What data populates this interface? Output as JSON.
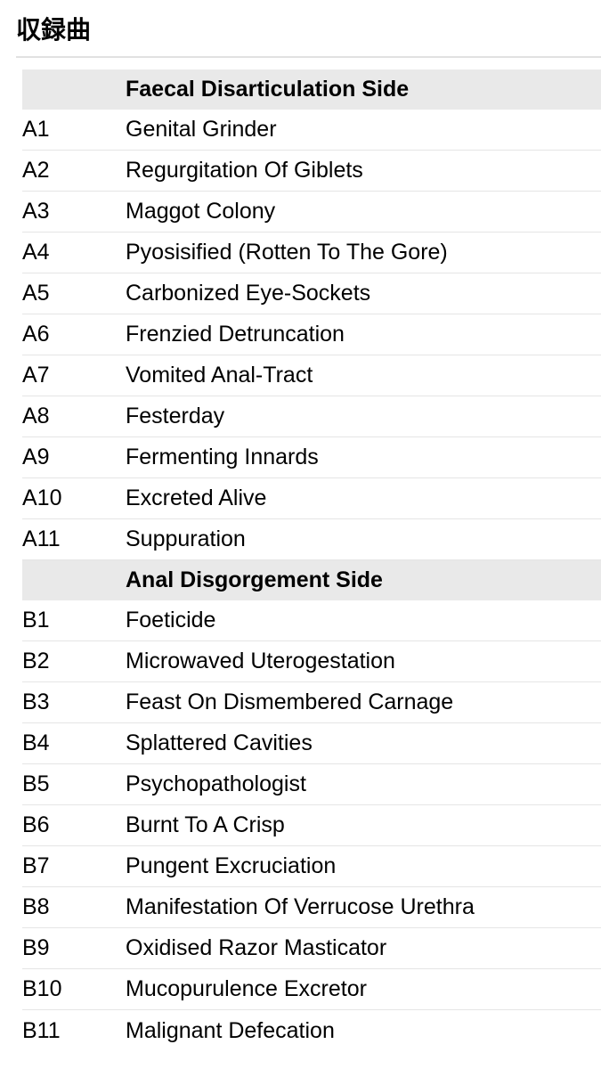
{
  "section": {
    "title": "収録曲"
  },
  "tracklist": {
    "sides": [
      {
        "header": "Faecal Disarticulation Side",
        "tracks": [
          {
            "no": "A1",
            "title": "Genital Grinder"
          },
          {
            "no": "A2",
            "title": "Regurgitation Of Giblets"
          },
          {
            "no": "A3",
            "title": "Maggot Colony"
          },
          {
            "no": "A4",
            "title": "Pyosisified (Rotten To The Gore)"
          },
          {
            "no": "A5",
            "title": "Carbonized Eye-Sockets"
          },
          {
            "no": "A6",
            "title": "Frenzied Detruncation"
          },
          {
            "no": "A7",
            "title": "Vomited Anal-Tract"
          },
          {
            "no": "A8",
            "title": "Festerday"
          },
          {
            "no": "A9",
            "title": "Fermenting Innards"
          },
          {
            "no": "A10",
            "title": "Excreted Alive"
          },
          {
            "no": "A11",
            "title": "Suppuration"
          }
        ]
      },
      {
        "header": "Anal Disgorgement Side",
        "tracks": [
          {
            "no": "B1",
            "title": "Foeticide"
          },
          {
            "no": "B2",
            "title": "Microwaved Uterogestation"
          },
          {
            "no": "B3",
            "title": "Feast On Dismembered Carnage"
          },
          {
            "no": "B4",
            "title": "Splattered Cavities"
          },
          {
            "no": "B5",
            "title": "Psychopathologist"
          },
          {
            "no": "B6",
            "title": "Burnt To A Crisp"
          },
          {
            "no": "B7",
            "title": "Pungent Excruciation"
          },
          {
            "no": "B8",
            "title": "Manifestation Of Verrucose Urethra"
          },
          {
            "no": "B9",
            "title": "Oxidised Razor Masticator"
          },
          {
            "no": "B10",
            "title": "Mucopurulence Excretor"
          },
          {
            "no": "B11",
            "title": "Malignant Defecation"
          }
        ]
      }
    ]
  },
  "colors": {
    "header_bg": "#e9e9e9",
    "row_divider": "#e5e5e5",
    "heading_rule": "#e1e1e1",
    "text": "#000000",
    "page_bg": "#ffffff"
  }
}
